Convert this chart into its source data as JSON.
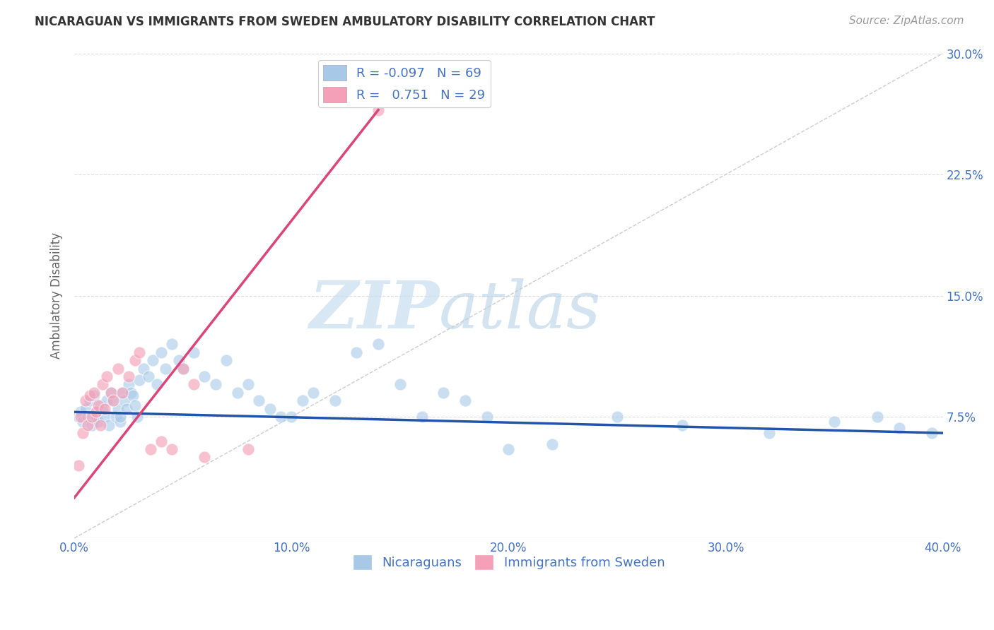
{
  "title": "NICARAGUAN VS IMMIGRANTS FROM SWEDEN AMBULATORY DISABILITY CORRELATION CHART",
  "source": "Source: ZipAtlas.com",
  "ylabel": "Ambulatory Disability",
  "legend_label1": "Nicaraguans",
  "legend_label2": "Immigrants from Sweden",
  "r1": -0.097,
  "n1": 69,
  "r2": 0.751,
  "n2": 29,
  "blue_color": "#a8c8e8",
  "pink_color": "#f4a0b8",
  "blue_line_color": "#2255aa",
  "pink_line_color": "#dd4477",
  "axis_color": "#4472c4",
  "xmin": 0.0,
  "xmax": 40.0,
  "ymin": 0.0,
  "ymax": 30.0,
  "yticks": [
    7.5,
    15.0,
    22.5,
    30.0
  ],
  "xticks": [
    0.0,
    10.0,
    20.0,
    30.0,
    40.0
  ],
  "blue_scatter_x": [
    0.2,
    0.3,
    0.4,
    0.5,
    0.6,
    0.7,
    0.8,
    0.9,
    1.0,
    1.1,
    1.2,
    1.3,
    1.4,
    1.5,
    1.6,
    1.7,
    1.8,
    1.9,
    2.0,
    2.1,
    2.2,
    2.3,
    2.4,
    2.5,
    2.6,
    2.7,
    2.8,
    2.9,
    3.0,
    3.2,
    3.4,
    3.6,
    3.8,
    4.0,
    4.2,
    4.5,
    4.8,
    5.0,
    5.5,
    6.0,
    6.5,
    7.0,
    7.5,
    8.0,
    8.5,
    9.0,
    9.5,
    10.0,
    10.5,
    11.0,
    12.0,
    13.0,
    14.0,
    15.0,
    16.0,
    17.0,
    18.0,
    19.0,
    20.0,
    22.0,
    25.0,
    28.0,
    32.0,
    35.0,
    37.0,
    38.0,
    39.5,
    2.1,
    1.0
  ],
  "blue_scatter_y": [
    7.5,
    7.8,
    7.2,
    8.0,
    7.5,
    8.5,
    7.0,
    8.8,
    7.5,
    7.2,
    8.2,
    8.0,
    7.5,
    8.5,
    7.0,
    9.0,
    8.5,
    7.5,
    8.0,
    7.2,
    9.0,
    8.5,
    8.0,
    9.5,
    9.0,
    8.8,
    8.2,
    7.5,
    9.8,
    10.5,
    10.0,
    11.0,
    9.5,
    11.5,
    10.5,
    12.0,
    11.0,
    10.5,
    11.5,
    10.0,
    9.5,
    11.0,
    9.0,
    9.5,
    8.5,
    8.0,
    7.5,
    7.5,
    8.5,
    9.0,
    8.5,
    11.5,
    12.0,
    9.5,
    7.5,
    9.0,
    8.5,
    7.5,
    5.5,
    5.8,
    7.5,
    7.0,
    6.5,
    7.2,
    7.5,
    6.8,
    6.5,
    7.5,
    7.8
  ],
  "pink_scatter_x": [
    0.2,
    0.3,
    0.4,
    0.5,
    0.6,
    0.7,
    0.8,
    0.9,
    1.0,
    1.1,
    1.2,
    1.3,
    1.4,
    1.5,
    1.7,
    1.8,
    2.0,
    2.2,
    2.5,
    2.8,
    3.0,
    3.5,
    4.0,
    4.5,
    5.0,
    5.5,
    6.0,
    8.0,
    14.0
  ],
  "pink_scatter_y": [
    4.5,
    7.5,
    6.5,
    8.5,
    7.0,
    8.8,
    7.5,
    9.0,
    7.8,
    8.2,
    7.0,
    9.5,
    8.0,
    10.0,
    9.0,
    8.5,
    10.5,
    9.0,
    10.0,
    11.0,
    11.5,
    5.5,
    6.0,
    5.5,
    10.5,
    9.5,
    5.0,
    5.5,
    26.5
  ],
  "blue_line_x": [
    0.0,
    40.0
  ],
  "blue_line_y": [
    7.8,
    6.5
  ],
  "pink_line_x": [
    0.0,
    14.0
  ],
  "pink_line_y": [
    2.5,
    26.5
  ],
  "diag_line_x": [
    0.0,
    40.0
  ],
  "diag_line_y": [
    0.0,
    30.0
  ]
}
